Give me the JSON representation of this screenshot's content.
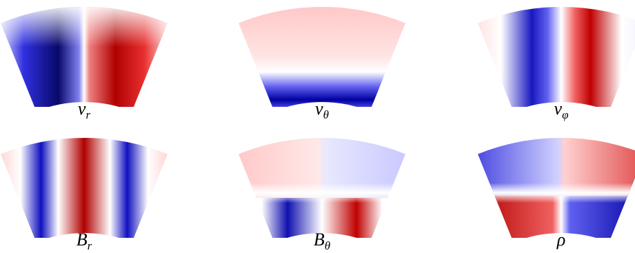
{
  "panels": [
    {
      "symbol": "v",
      "subscript": "r"
    },
    {
      "symbol": "v",
      "subscript": "θ"
    },
    {
      "symbol": "v",
      "subscript": "φ"
    },
    {
      "symbol": "B",
      "subscript": "r"
    },
    {
      "symbol": "B",
      "subscript": "θ"
    },
    {
      "symbol": "ρ"
    }
  ]
}
